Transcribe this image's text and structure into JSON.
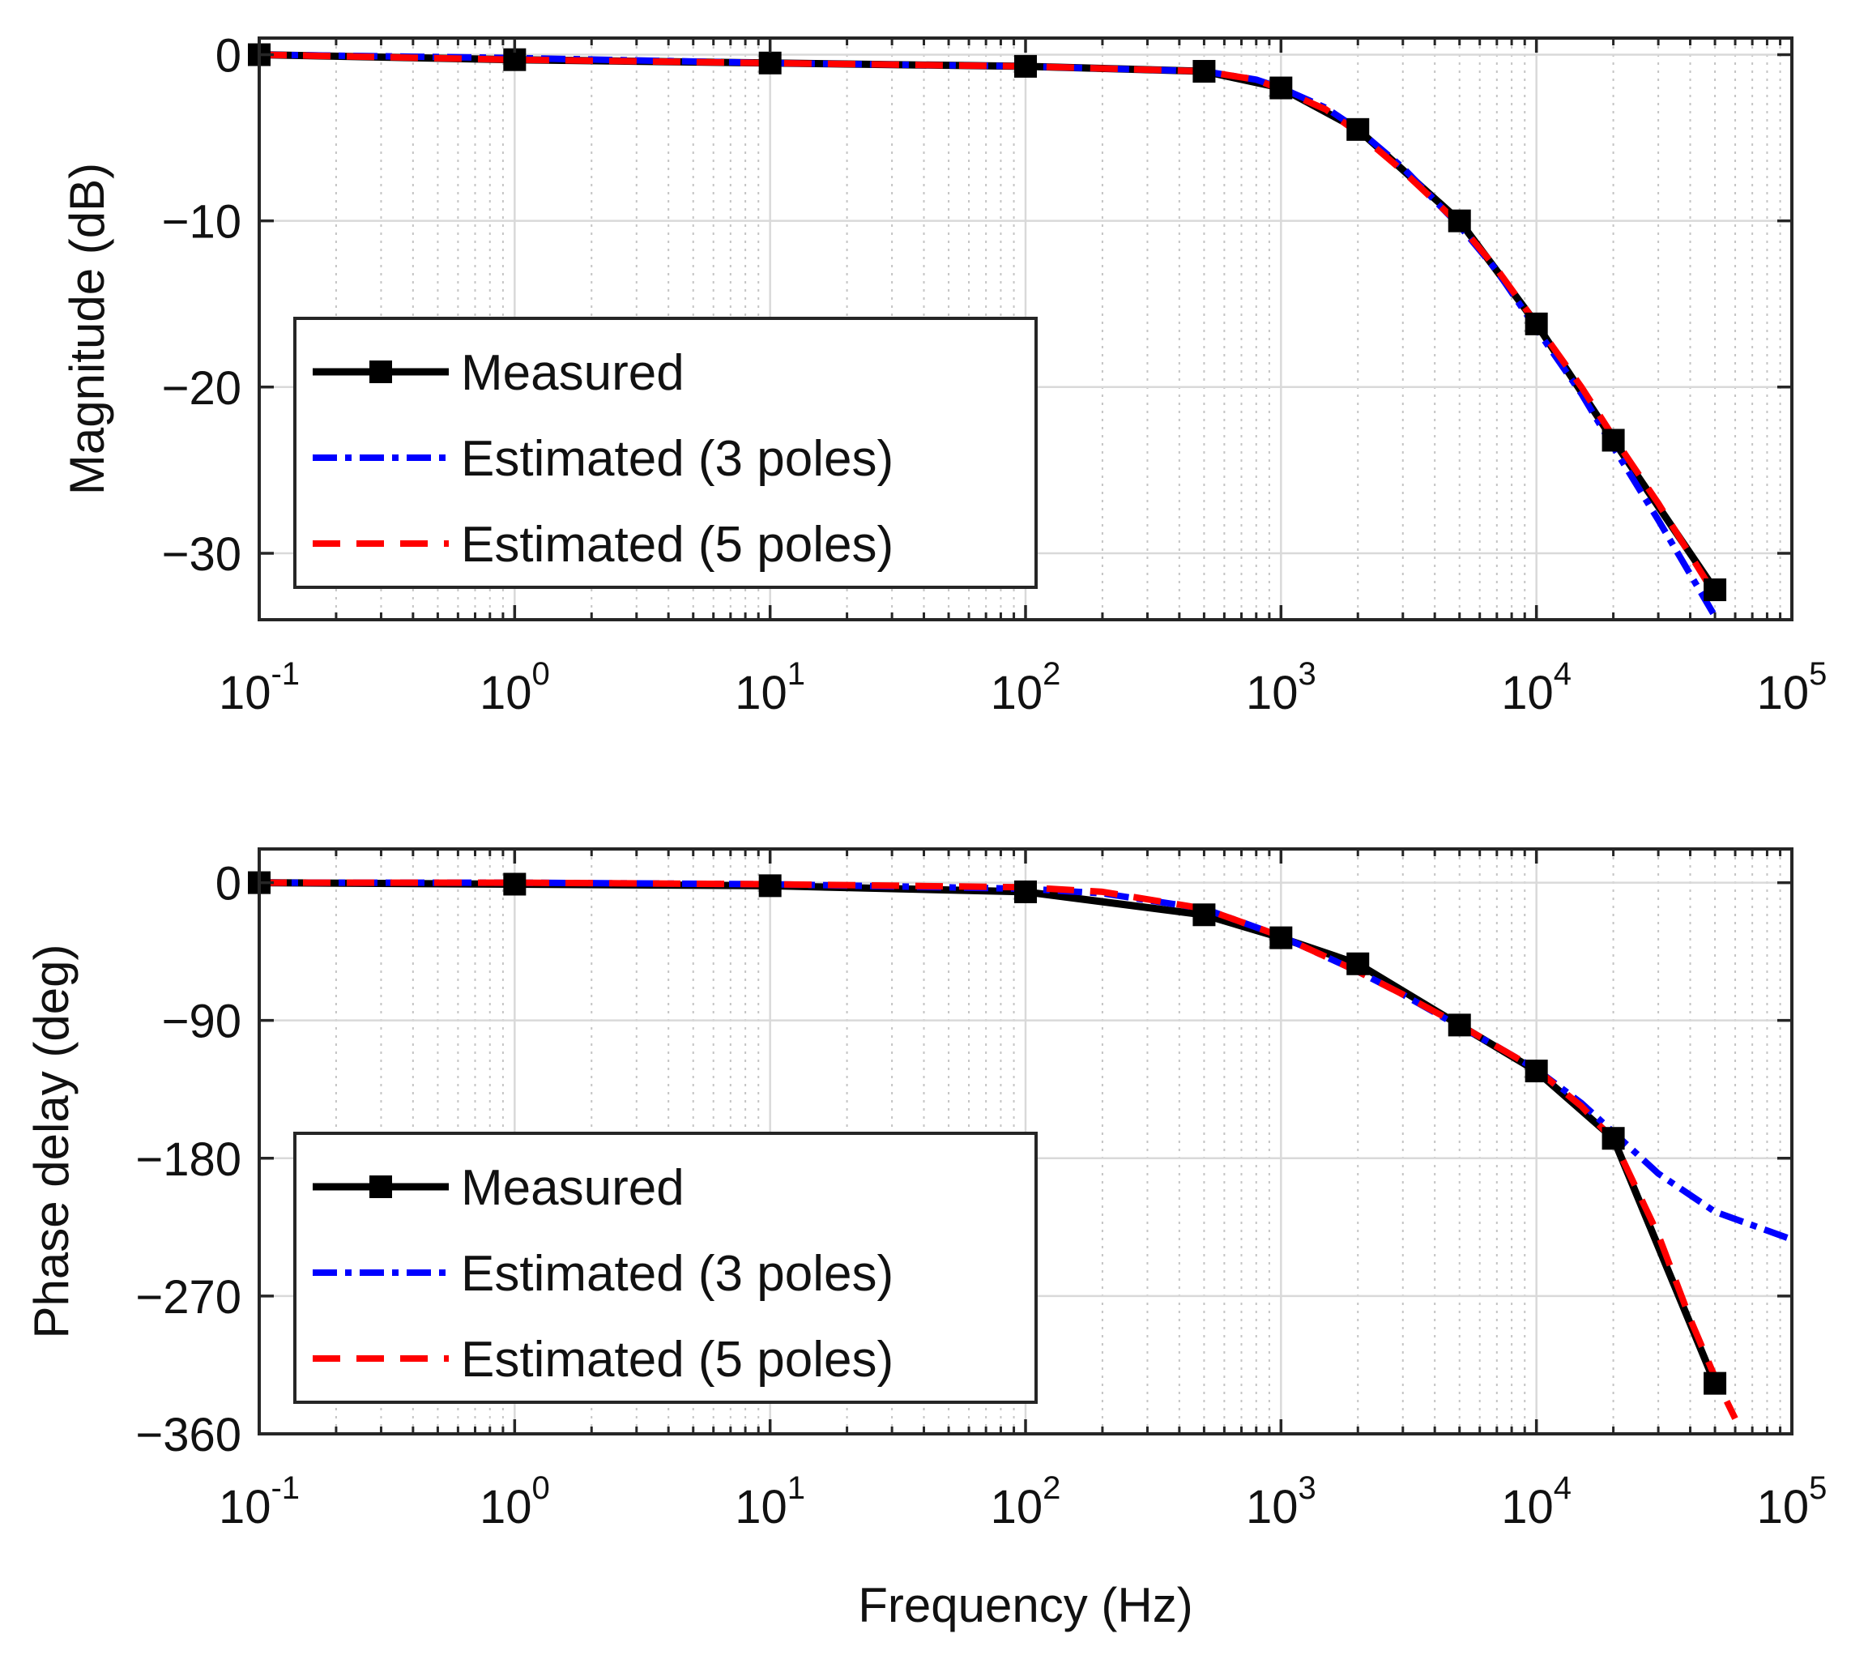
{
  "chart_data": [
    {
      "type": "line",
      "panel": "top",
      "title": "",
      "xlabel": "",
      "ylabel": "Magnitude (dB)",
      "xscale": "log",
      "xlim": [
        0.1,
        100000
      ],
      "ylim": [
        -34,
        1
      ],
      "grid": true,
      "x_ticks": [
        {
          "value": 0.1,
          "base": "10",
          "exp": "-1"
        },
        {
          "value": 1,
          "base": "10",
          "exp": "0"
        },
        {
          "value": 10,
          "base": "10",
          "exp": "1"
        },
        {
          "value": 100,
          "base": "10",
          "exp": "2"
        },
        {
          "value": 1000,
          "base": "10",
          "exp": "3"
        },
        {
          "value": 10000,
          "base": "10",
          "exp": "4"
        },
        {
          "value": 100000,
          "base": "10",
          "exp": "5"
        }
      ],
      "y_ticks": [
        {
          "value": 0,
          "label": "0"
        },
        {
          "value": -10,
          "label": "−10"
        },
        {
          "value": -20,
          "label": "−20"
        },
        {
          "value": -30,
          "label": "−30"
        }
      ],
      "legend": {
        "placement": "lower-left",
        "entries": [
          "Measured",
          "Estimated (3 poles)",
          "Estimated (5 poles)"
        ]
      },
      "series": [
        {
          "name": "Measured",
          "color": "#000000",
          "style": "solid-square-markers",
          "x": [
            0.1,
            1,
            10,
            100,
            500,
            1000,
            2000,
            5000,
            10000,
            20000,
            50000
          ],
          "y": [
            0,
            -0.3,
            -0.5,
            -0.7,
            -1.0,
            -2.0,
            -4.5,
            -10.0,
            -16.2,
            -23.2,
            -32.2
          ]
        },
        {
          "name": "Estimated (3 poles)",
          "color": "#0000ff",
          "style": "dash-dot",
          "x": [
            0.1,
            1,
            10,
            100,
            500,
            800,
            1000,
            1500,
            2000,
            3000,
            5000,
            7000,
            10000,
            15000,
            20000,
            30000,
            50000
          ],
          "y": [
            0,
            -0.2,
            -0.5,
            -0.7,
            -1.0,
            -1.5,
            -2.0,
            -3.2,
            -4.5,
            -6.8,
            -10.3,
            -13.0,
            -16.5,
            -20.4,
            -23.6,
            -28.0,
            -33.8
          ]
        },
        {
          "name": "Estimated (5 poles)",
          "color": "#ff0000",
          "style": "dashed",
          "x": [
            0.1,
            1,
            10,
            100,
            500,
            800,
            1000,
            1500,
            2000,
            3000,
            5000,
            7000,
            10000,
            15000,
            20000,
            30000,
            50000
          ],
          "y": [
            0,
            -0.3,
            -0.5,
            -0.7,
            -1.0,
            -1.5,
            -2.1,
            -3.3,
            -4.7,
            -7.0,
            -10.2,
            -12.9,
            -16.2,
            -20.0,
            -23.0,
            -27.0,
            -32.5
          ]
        }
      ]
    },
    {
      "type": "line",
      "panel": "bottom",
      "title": "",
      "xlabel": "Frequency (Hz)",
      "ylabel": "Phase delay (deg)",
      "xscale": "log",
      "xlim": [
        0.1,
        100000
      ],
      "ylim": [
        -360,
        22
      ],
      "grid": true,
      "x_ticks": [
        {
          "value": 0.1,
          "base": "10",
          "exp": "-1"
        },
        {
          "value": 1,
          "base": "10",
          "exp": "0"
        },
        {
          "value": 10,
          "base": "10",
          "exp": "1"
        },
        {
          "value": 100,
          "base": "10",
          "exp": "2"
        },
        {
          "value": 1000,
          "base": "10",
          "exp": "3"
        },
        {
          "value": 10000,
          "base": "10",
          "exp": "4"
        },
        {
          "value": 100000,
          "base": "10",
          "exp": "5"
        }
      ],
      "y_ticks": [
        {
          "value": 0,
          "label": "0"
        },
        {
          "value": -90,
          "label": "−90"
        },
        {
          "value": -180,
          "label": "−180"
        },
        {
          "value": -270,
          "label": "−270"
        },
        {
          "value": -360,
          "label": "−360"
        }
      ],
      "legend": {
        "placement": "lower-left",
        "entries": [
          "Measured",
          "Estimated (3 poles)",
          "Estimated (5 poles)"
        ]
      },
      "series": [
        {
          "name": "Measured",
          "color": "#000000",
          "style": "solid-square-markers",
          "x": [
            0.1,
            1,
            10,
            100,
            500,
            1000,
            2000,
            5000,
            10000,
            20000,
            50000
          ],
          "y": [
            0,
            -1,
            -2,
            -6,
            -21,
            -36,
            -53,
            -93,
            -123,
            -167,
            -327
          ]
        },
        {
          "name": "Estimated (3 poles)",
          "color": "#0000ff",
          "style": "dash-dot",
          "x": [
            0.1,
            1,
            10,
            100,
            200,
            500,
            1000,
            2000,
            3000,
            5000,
            7000,
            10000,
            15000,
            20000,
            30000,
            50000,
            100000
          ],
          "y": [
            0,
            0,
            -1,
            -4,
            -7,
            -17,
            -35,
            -58,
            -73,
            -94,
            -107,
            -122,
            -144,
            -163,
            -190,
            -215,
            -233
          ]
        },
        {
          "name": "Estimated (5 poles)",
          "color": "#ff0000",
          "style": "dashed",
          "x": [
            0.1,
            1,
            10,
            100,
            200,
            500,
            1000,
            2000,
            3000,
            5000,
            7000,
            10000,
            15000,
            20000,
            30000,
            40000,
            50000,
            60000
          ],
          "y": [
            0,
            0,
            -1,
            -3,
            -6,
            -17,
            -35,
            -58,
            -73,
            -93,
            -107,
            -122,
            -146,
            -168,
            -230,
            -285,
            -323,
            -350
          ]
        }
      ]
    }
  ]
}
